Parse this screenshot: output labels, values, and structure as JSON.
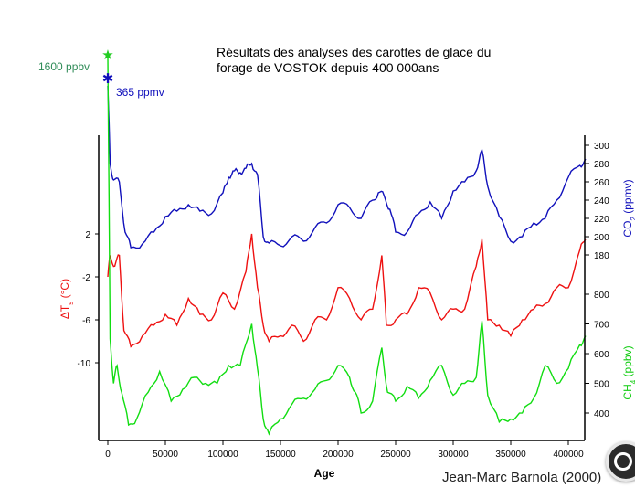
{
  "chart_data": {
    "type": "line",
    "title": "Résultats des analyses des carottes de glace du\nforage de VOSTOK depuis 400 000ans",
    "xlabel": "Age",
    "credit": "Jean-Marc Barnola (2000)",
    "xlim": [
      -8000,
      420000
    ],
    "x_ticks": [
      0,
      50000,
      100000,
      150000,
      200000,
      250000,
      300000,
      350000,
      400000
    ],
    "left_axis": {
      "label": "ΔTs (°C)",
      "ticks": [
        2,
        -2,
        -6,
        -10
      ],
      "color": "#ee1111"
    },
    "right_axes": [
      {
        "name": "CO2",
        "label": "CO2 (ppmv)",
        "ticks": [
          300,
          280,
          260,
          240,
          220,
          200,
          180
        ],
        "range": [
          168,
          300
        ],
        "color": "#1010bb"
      },
      {
        "name": "CH4",
        "label": "CH4 (ppbv)",
        "ticks": [
          800,
          700,
          600,
          500,
          400
        ],
        "range": [
          320,
          800
        ],
        "color": "#11dd11"
      }
    ],
    "annotations": [
      {
        "text": "1600 ppbv",
        "series": "CH4",
        "value": 1600,
        "x": 0,
        "color": "#2e8b57"
      },
      {
        "text": "365 ppmv",
        "series": "CO2",
        "value": 365,
        "x": 0,
        "color": "#1010bb"
      }
    ],
    "series": [
      {
        "name": "CO2",
        "unit": "ppmv",
        "color": "#1010bb",
        "x": [
          0,
          2000,
          5000,
          10000,
          15000,
          20000,
          30000,
          40000,
          50000,
          60000,
          70000,
          80000,
          90000,
          100000,
          105000,
          110000,
          115000,
          120000,
          125000,
          130000,
          135000,
          140000,
          150000,
          160000,
          170000,
          180000,
          190000,
          200000,
          210000,
          220000,
          230000,
          235000,
          240000,
          245000,
          250000,
          260000,
          270000,
          280000,
          290000,
          300000,
          310000,
          320000,
          325000,
          330000,
          340000,
          350000,
          360000,
          370000,
          380000,
          390000,
          400000,
          410000,
          415000
        ],
        "y": [
          365,
          280,
          262,
          260,
          205,
          188,
          192,
          205,
          222,
          228,
          235,
          228,
          225,
          248,
          265,
          272,
          270,
          275,
          280,
          268,
          200,
          193,
          190,
          200,
          195,
          210,
          215,
          235,
          232,
          220,
          240,
          248,
          245,
          230,
          205,
          205,
          225,
          238,
          220,
          250,
          260,
          272,
          295,
          255,
          222,
          195,
          200,
          215,
          220,
          240,
          265,
          278,
          285
        ]
      },
      {
        "name": "Temperature",
        "unit": "°C",
        "color": "#ee1111",
        "x": [
          0,
          2000,
          6000,
          10000,
          14000,
          20000,
          30000,
          40000,
          50000,
          60000,
          70000,
          80000,
          90000,
          100000,
          110000,
          120000,
          125000,
          130000,
          135000,
          140000,
          150000,
          160000,
          170000,
          180000,
          190000,
          200000,
          210000,
          220000,
          230000,
          238000,
          242000,
          250000,
          260000,
          270000,
          280000,
          290000,
          300000,
          310000,
          320000,
          325000,
          330000,
          340000,
          350000,
          360000,
          370000,
          380000,
          390000,
          400000,
          410000,
          415000
        ],
        "y": [
          -2,
          0,
          -1,
          0,
          -7,
          -8.5,
          -7.5,
          -6.5,
          -5.5,
          -6.5,
          -4,
          -5.5,
          -6,
          -3.5,
          -5,
          -1.5,
          2,
          -3,
          -6.5,
          -8,
          -7.5,
          -6.5,
          -8,
          -6,
          -6,
          -3,
          -4,
          -6,
          -5,
          0,
          -6.5,
          -6,
          -5.5,
          -3,
          -3.5,
          -6,
          -5,
          -5,
          -1,
          1.5,
          -6,
          -6.5,
          -7.5,
          -6,
          -5,
          -4.5,
          -3,
          -3,
          0.5,
          1.5
        ]
      },
      {
        "name": "CH4",
        "unit": "ppbv",
        "color": "#11dd11",
        "x": [
          0,
          2000,
          5000,
          8000,
          12000,
          18000,
          25000,
          35000,
          45000,
          55000,
          65000,
          75000,
          85000,
          95000,
          105000,
          115000,
          125000,
          130000,
          135000,
          140000,
          150000,
          160000,
          170000,
          180000,
          190000,
          200000,
          210000,
          215000,
          220000,
          230000,
          238000,
          243000,
          250000,
          260000,
          270000,
          280000,
          290000,
          300000,
          310000,
          320000,
          325000,
          330000,
          340000,
          350000,
          360000,
          370000,
          380000,
          390000,
          400000,
          410000,
          415000
        ],
        "y": [
          1600,
          650,
          500,
          560,
          470,
          360,
          380,
          470,
          540,
          440,
          480,
          520,
          500,
          500,
          560,
          560,
          700,
          550,
          380,
          330,
          380,
          430,
          450,
          480,
          510,
          560,
          520,
          470,
          400,
          440,
          620,
          470,
          440,
          490,
          450,
          510,
          560,
          460,
          500,
          520,
          710,
          460,
          370,
          380,
          400,
          450,
          560,
          500,
          550,
          630,
          660
        ]
      }
    ]
  }
}
